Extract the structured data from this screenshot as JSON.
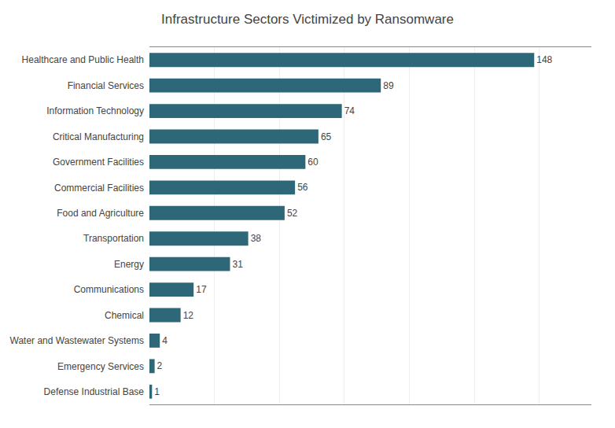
{
  "chart_data": {
    "type": "bar",
    "orientation": "horizontal",
    "title": "Infrastructure Sectors Victimized by Ransomware",
    "categories": [
      "Healthcare and Public Health",
      "Financial Services",
      "Information Technology",
      "Critical Manufacturing",
      "Government Facilities",
      "Commercial Facilities",
      "Food and Agriculture",
      "Transportation",
      "Energy",
      "Communications",
      "Chemical",
      "Water and Wastewater Systems",
      "Emergency Services",
      "Defense Industrial Base"
    ],
    "values": [
      148,
      89,
      74,
      65,
      60,
      56,
      52,
      38,
      31,
      17,
      12,
      4,
      2,
      1
    ],
    "color": "#2e6878",
    "xlim": [
      0,
      170
    ],
    "xticks": [
      0,
      25,
      50,
      75,
      100,
      125,
      150
    ],
    "grid": true,
    "data_labels": true,
    "tick_labels": "y"
  }
}
